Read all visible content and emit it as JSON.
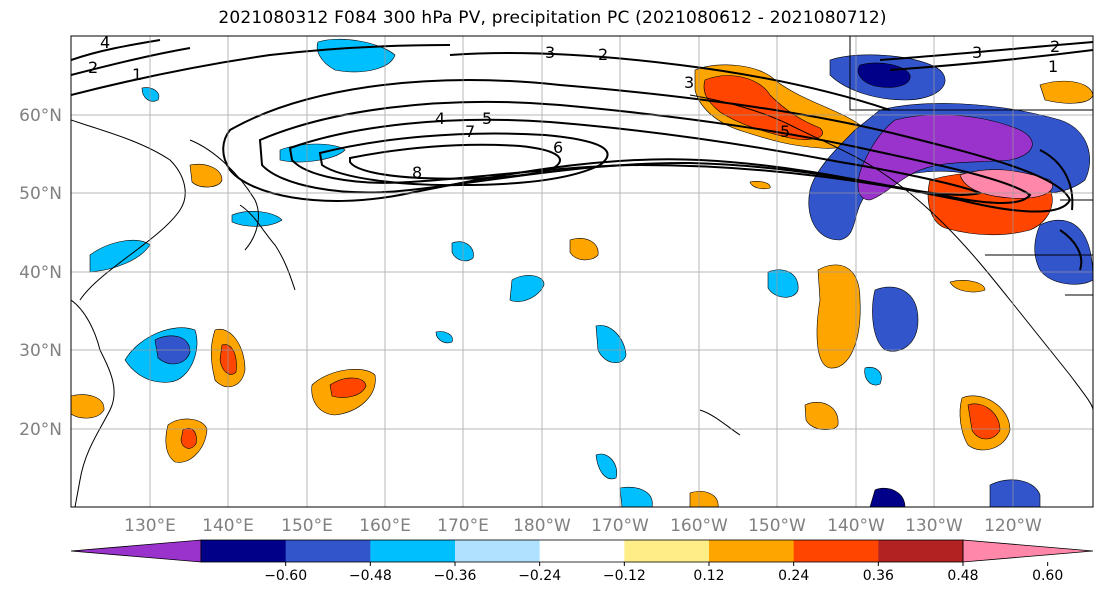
{
  "title": "2021080312 F084 300 hPa PV, precipitation PC (2021080612 - 2021080712)",
  "lat_labels": [
    "60°N",
    "50°N",
    "40°N",
    "30°N",
    "20°N"
  ],
  "lon_labels": [
    "130°E",
    "140°E",
    "150°E",
    "160°E",
    "170°E",
    "180°W",
    "170°W",
    "160°W",
    "150°W",
    "140°W",
    "130°W",
    "120°W"
  ],
  "colorbar": {
    "colors": [
      "#9933cc",
      "#000088",
      "#3355cc",
      "#00bfff",
      "#b0e2ff",
      "#ffffff",
      "#ffee88",
      "#ffa500",
      "#ff4500",
      "#b22222",
      "#ff88aa"
    ],
    "ticks": [
      "-0.60",
      "-0.48",
      "-0.36",
      "-0.24",
      "-0.12",
      "0.12",
      "0.24",
      "0.36",
      "0.48",
      "0.60"
    ]
  },
  "pv_contour_labels": [
    "1",
    "2",
    "3",
    "4",
    "5",
    "6",
    "7",
    "8",
    "2",
    "3",
    "4",
    "5",
    "1",
    "3",
    "2"
  ]
}
